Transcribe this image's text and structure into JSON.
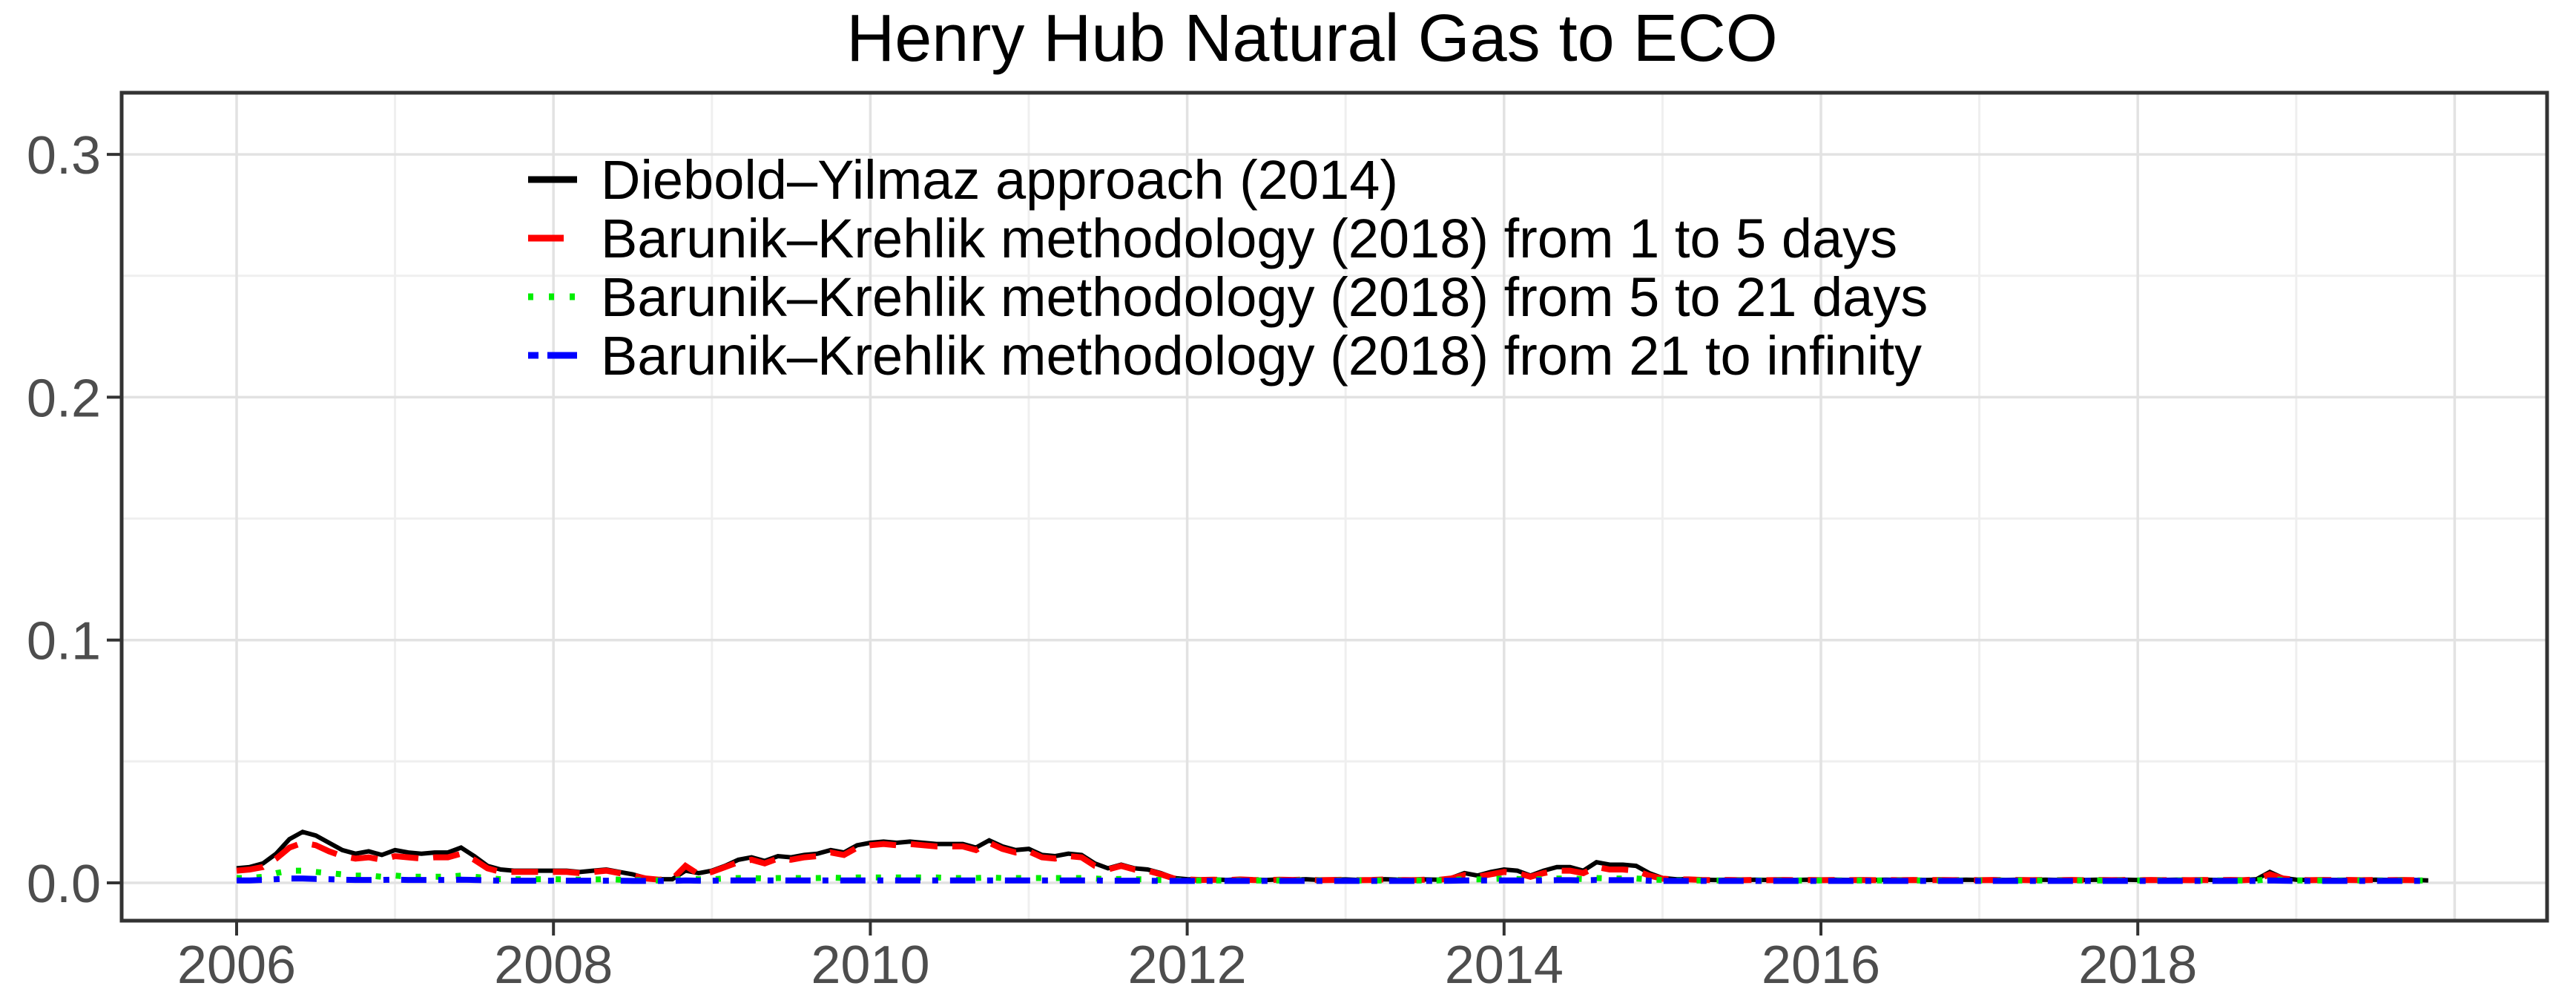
{
  "chart_data": {
    "type": "line",
    "title": "Henry Hub Natural Gas to ECO",
    "xlabel": "",
    "ylabel": "",
    "x_start": 2006.0,
    "x_step_years": 0.0833333,
    "x_end": 2019.83,
    "value_scale": 0.001,
    "ylim": [
      -0.016,
      0.325
    ],
    "xlim": [
      2005.3,
      2020.6
    ],
    "grid": {
      "x_major_years": [
        2006,
        2008,
        2010,
        2012,
        2014,
        2016,
        2018,
        2020
      ],
      "x_minor_years": [
        2007,
        2009,
        2011,
        2013,
        2015,
        2017,
        2019
      ],
      "y_major": [
        0.0,
        0.1,
        0.2,
        0.3
      ],
      "y_minor": [
        0.05,
        0.15,
        0.25
      ]
    },
    "x_ticks": [
      {
        "year": 2006,
        "label": "2006"
      },
      {
        "year": 2008,
        "label": "2008"
      },
      {
        "year": 2010,
        "label": "2010"
      },
      {
        "year": 2012,
        "label": "2012"
      },
      {
        "year": 2014,
        "label": "2014"
      },
      {
        "year": 2016,
        "label": "2016"
      },
      {
        "year": 2018,
        "label": "2018"
      }
    ],
    "y_ticks": [
      {
        "v": 0.0,
        "label": "0.0"
      },
      {
        "v": 0.1,
        "label": "0.1"
      },
      {
        "v": 0.2,
        "label": "0.2"
      },
      {
        "v": 0.3,
        "label": "0.3"
      }
    ],
    "legend_position": "inside-top-left",
    "series": [
      {
        "id": "diebold-yilmaz",
        "name": "Diebold–Yilmaz approach (2014)",
        "color": "#000000",
        "line_style": "solid",
        "values_millis": [
          6,
          6.5,
          8,
          12,
          18,
          21,
          19.5,
          16.5,
          13.5,
          12,
          13,
          11.5,
          13.5,
          12.5,
          12,
          12.5,
          12.5,
          14.5,
          11,
          7,
          5.5,
          5,
          5,
          5,
          5,
          5,
          4.5,
          5,
          5.5,
          4.5,
          3.5,
          2,
          1.5,
          1.5,
          5,
          4,
          5,
          7,
          9.5,
          10.5,
          9,
          11,
          10.5,
          11.5,
          12,
          13.5,
          12.5,
          15.5,
          16.5,
          17,
          16.5,
          17,
          16.5,
          16,
          16,
          16,
          14.5,
          17.5,
          15,
          13.5,
          14,
          11.5,
          11,
          12,
          11.5,
          8,
          6,
          7.5,
          6,
          5.5,
          4,
          2,
          1.5,
          1.3,
          1.4,
          1.2,
          1.5,
          1.3,
          1.2,
          1.4,
          1.3,
          1.5,
          1.2,
          1.3,
          1.4,
          1.2,
          1.3,
          1.5,
          1.3,
          1.2,
          1.4,
          1.3,
          2,
          4,
          3,
          4.5,
          5.5,
          5,
          3,
          5,
          6.5,
          6.5,
          5,
          8.5,
          7.5,
          7.5,
          7,
          4,
          2,
          1.5,
          1.5,
          1.3,
          1.2,
          1.3,
          1.2,
          1.3,
          1.2,
          1.3,
          1.2,
          1.3,
          1.2,
          1.3,
          1.2,
          1.3,
          1.2,
          1.3,
          1.2,
          1.3,
          1.2,
          1.3,
          1.2,
          1.3,
          1.2,
          1.3,
          1.2,
          1.3,
          1.2,
          1.3,
          1.2,
          1.3,
          1.2,
          1.3,
          1.2,
          1.3,
          1.2,
          1.3,
          1.2,
          1.3,
          1.2,
          1.3,
          1.2,
          1.3,
          1.2,
          1.5,
          4.5,
          2,
          1.3,
          1.2,
          1.3,
          1.2,
          1.3,
          1.2,
          1.3,
          1.2,
          1.3,
          1.2,
          1
        ]
      },
      {
        "id": "barunik-krehlik-1-5",
        "name": "Barunik–Krehlik methodology (2018) from 1 to 5 days",
        "color": "#FF0000",
        "line_style": "dashed",
        "values_millis": [
          5,
          5.5,
          6.5,
          10,
          14.5,
          16.5,
          15.5,
          13,
          11,
          10,
          10.5,
          9.5,
          11,
          10.5,
          10,
          10.5,
          10.5,
          12,
          9.5,
          6,
          4.5,
          4.5,
          4.5,
          4.5,
          4.5,
          4.5,
          4,
          4.5,
          5,
          4,
          3,
          1.8,
          1.3,
          1.5,
          7,
          3.5,
          4.5,
          6.5,
          8.5,
          9.5,
          8,
          10,
          9.5,
          10.5,
          11,
          12.5,
          11.5,
          14.5,
          15.5,
          16,
          15.5,
          16,
          15.5,
          15,
          15,
          15,
          13.5,
          16.5,
          14,
          12.5,
          13,
          10.5,
          10,
          11,
          10.5,
          7,
          5.5,
          7,
          5.5,
          5,
          3.5,
          1.8,
          1.4,
          1.2,
          1.3,
          1.1,
          1.4,
          1.2,
          1.1,
          1.3,
          1.2,
          1.4,
          1.1,
          1.2,
          1.3,
          1.1,
          1.2,
          1.4,
          1.2,
          1.1,
          1.3,
          1.2,
          1.8,
          3.2,
          2.5,
          3.5,
          4.5,
          4,
          2.5,
          4,
          5,
          5,
          4,
          6.5,
          5.5,
          5.5,
          5,
          3,
          1.7,
          1.4,
          1.4,
          1.2,
          1.1,
          1.2,
          1.1,
          1.2,
          1.1,
          1.2,
          1.1,
          1.2,
          1.1,
          1.2,
          1.1,
          1.2,
          1.1,
          1.2,
          1.1,
          1.2,
          1.1,
          1.2,
          1.1,
          1.2,
          1.1,
          1.2,
          1.1,
          1.2,
          1.1,
          1.2,
          1.1,
          1.2,
          1.1,
          1.2,
          1.1,
          1.2,
          1.1,
          1.2,
          1.1,
          1.2,
          1.1,
          1.2,
          1.1,
          1.2,
          1.1,
          1.4,
          3.5,
          1.8,
          1.2,
          1.1,
          1.2,
          1.1,
          1.2,
          1.1,
          1.2,
          1.1,
          1.2,
          1.1,
          1
        ]
      },
      {
        "id": "barunik-krehlik-5-21",
        "name": "Barunik–Krehlik methodology (2018) from 5 to 21 days",
        "color": "#00EE00",
        "line_style": "dotted",
        "values_millis": [
          2,
          2,
          2.5,
          4,
          5,
          5,
          4.5,
          4,
          3.5,
          3,
          3,
          2.5,
          3,
          2.5,
          2.5,
          2.5,
          2.5,
          3,
          2.5,
          2,
          1.5,
          1.5,
          1.5,
          1.5,
          1.5,
          1.4,
          1.3,
          1.4,
          1.5,
          1.3,
          1.2,
          1,
          1,
          1,
          1.8,
          1.5,
          1.5,
          1.8,
          2,
          2,
          1.8,
          2,
          2,
          2,
          2,
          2.2,
          2,
          2.2,
          2.2,
          2.2,
          2.2,
          2.2,
          2.2,
          2.2,
          2,
          2,
          2,
          2.2,
          2,
          2,
          2,
          2,
          2,
          2,
          2,
          1.8,
          1.5,
          1.6,
          1.5,
          1.4,
          1.2,
          1,
          1,
          1,
          1,
          1,
          1,
          1,
          1,
          1,
          1,
          1,
          1,
          1,
          1,
          1,
          1,
          1,
          1,
          1,
          1,
          1,
          1.2,
          1.5,
          1.4,
          1.6,
          1.8,
          1.6,
          1.3,
          1.6,
          1.8,
          1.8,
          1.6,
          2,
          1.8,
          1.8,
          1.8,
          1.4,
          1.2,
          1,
          1,
          1,
          1,
          1,
          1,
          1,
          1,
          1,
          1,
          1,
          1,
          1,
          1,
          1,
          1,
          1,
          1,
          1,
          1,
          1,
          1,
          1,
          1,
          1,
          1,
          1,
          1,
          1,
          1,
          1,
          1,
          1,
          1,
          1,
          1,
          1,
          1,
          1,
          1,
          1,
          1,
          1,
          1,
          1,
          1.5,
          1.2,
          1,
          1,
          1,
          1,
          1,
          1,
          1,
          1,
          1,
          1,
          1
        ]
      },
      {
        "id": "barunik-krehlik-21-inf",
        "name": "Barunik–Krehlik methodology (2018) from 21 to infinity",
        "color": "#0000FF",
        "line_style": "dash-dot",
        "values_millis": [
          1,
          1,
          1.2,
          1.5,
          1.8,
          1.8,
          1.6,
          1.5,
          1.3,
          1.2,
          1.2,
          1.2,
          1.3,
          1.2,
          1.2,
          1.2,
          1.2,
          1.3,
          1.2,
          1,
          0.9,
          0.9,
          0.9,
          0.9,
          0.9,
          0.9,
          0.9,
          0.9,
          0.9,
          0.9,
          0.8,
          0.8,
          0.8,
          0.8,
          1,
          0.9,
          0.9,
          1,
          1,
          1,
          1,
          1,
          1,
          1,
          1,
          1,
          1,
          1,
          1,
          1,
          1,
          1,
          1,
          1,
          1,
          1,
          1,
          1,
          1,
          1,
          1,
          1,
          1,
          1,
          1,
          1,
          0.9,
          0.9,
          0.9,
          0.9,
          0.8,
          0.8,
          0.8,
          0.8,
          0.8,
          0.8,
          0.8,
          0.8,
          0.8,
          0.8,
          0.8,
          0.8,
          0.8,
          0.8,
          0.8,
          0.8,
          0.8,
          0.8,
          0.8,
          0.8,
          0.8,
          0.8,
          0.9,
          1,
          1,
          1,
          1,
          1,
          0.9,
          1,
          1.1,
          1.1,
          1,
          1.2,
          1.1,
          1.1,
          1.1,
          0.9,
          0.8,
          0.8,
          0.8,
          0.8,
          0.8,
          0.8,
          0.8,
          0.8,
          0.8,
          0.8,
          0.8,
          0.8,
          0.8,
          0.8,
          0.8,
          0.8,
          0.8,
          0.8,
          0.8,
          0.8,
          0.8,
          0.8,
          0.8,
          0.8,
          0.8,
          0.8,
          0.8,
          0.8,
          0.8,
          0.8,
          0.8,
          0.8,
          0.8,
          0.8,
          0.8,
          0.8,
          0.8,
          0.8,
          0.8,
          0.8,
          0.8,
          0.8,
          0.8,
          0.8,
          0.8,
          0.8,
          1,
          0.9,
          0.8,
          0.8,
          0.8,
          0.8,
          0.8,
          0.8,
          0.8,
          0.8,
          0.8,
          0.8,
          0.8
        ]
      }
    ],
    "style": {
      "panel_border_color": "#333333",
      "tick_color": "#333333",
      "axis_text_color": "#4D4D4D",
      "grid_major_color": "#E2E2E2",
      "grid_minor_color": "#EFEFEF",
      "background": "#FFFFFF"
    }
  }
}
